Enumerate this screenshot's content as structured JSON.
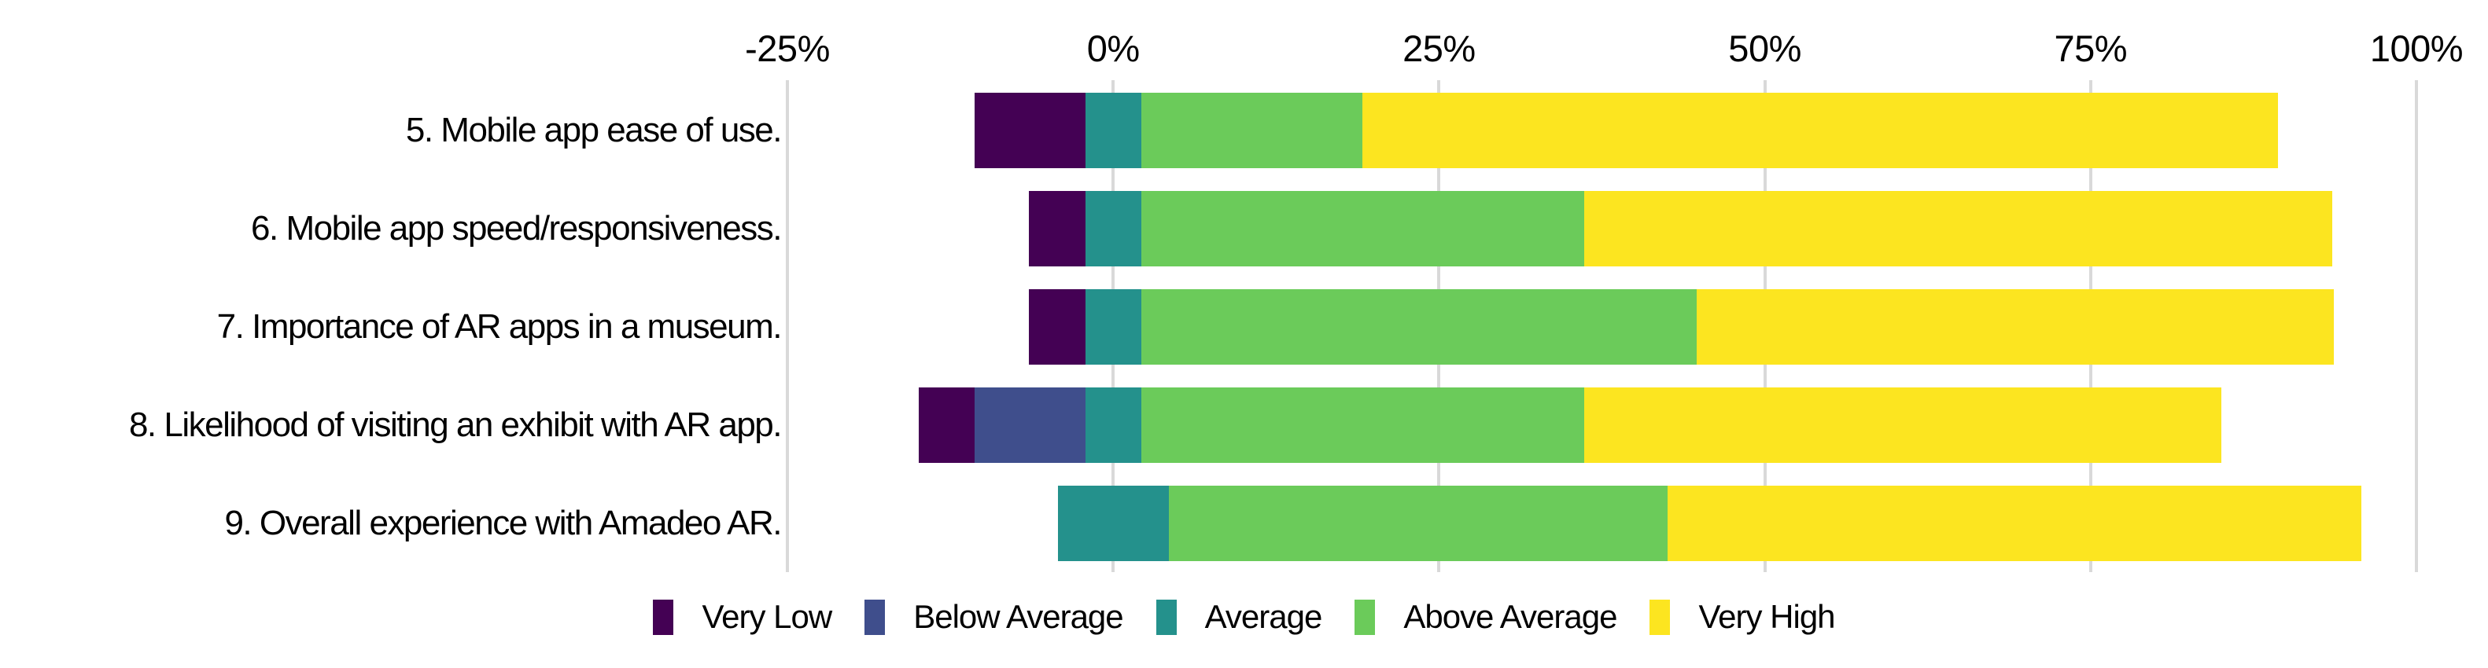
{
  "chart_data": {
    "type": "bar",
    "variant": "horizontal-diverging-stacked-likert",
    "title": "",
    "categories": [
      "5. Mobile app ease of use.",
      "6. Mobile app speed/responsiveness.",
      "7. Importance of AR apps in a museum.",
      "8. Likelihood of visiting an exhibit with AR app.",
      "9. Overall experience with Amadeo AR."
    ],
    "series": [
      {
        "name": "Very Low",
        "color": "#440154",
        "values": [
          8.5,
          4.3,
          4.3,
          4.3,
          0
        ]
      },
      {
        "name": "Below Average",
        "color": "#3F4E8C",
        "values": [
          0,
          0,
          0,
          8.5,
          0
        ]
      },
      {
        "name": "Average",
        "color": "#24918C",
        "values": [
          4.3,
          4.3,
          4.3,
          4.3,
          8.5
        ]
      },
      {
        "name": "Above Average",
        "color": "#6BCB5A",
        "values": [
          17.0,
          34.0,
          42.6,
          34.0,
          38.3
        ]
      },
      {
        "name": "Very High",
        "color": "#FCE520",
        "values": [
          70.2,
          57.4,
          48.9,
          48.9,
          53.2
        ]
      }
    ],
    "units": "percent of respondents",
    "baseline": "neutral 'Average' segment centered on 0%",
    "x_ticks": [
      "-25%",
      "0%",
      "25%",
      "50%",
      "75%",
      "100%"
    ],
    "x_tick_values": [
      -25,
      0,
      25,
      50,
      75,
      100
    ],
    "xlim": [
      -25,
      100
    ],
    "grid": true,
    "legend_position": "bottom",
    "colors": {
      "gridline": "#D9D9D9",
      "text": "#000000",
      "background": "#FFFFFF"
    }
  }
}
